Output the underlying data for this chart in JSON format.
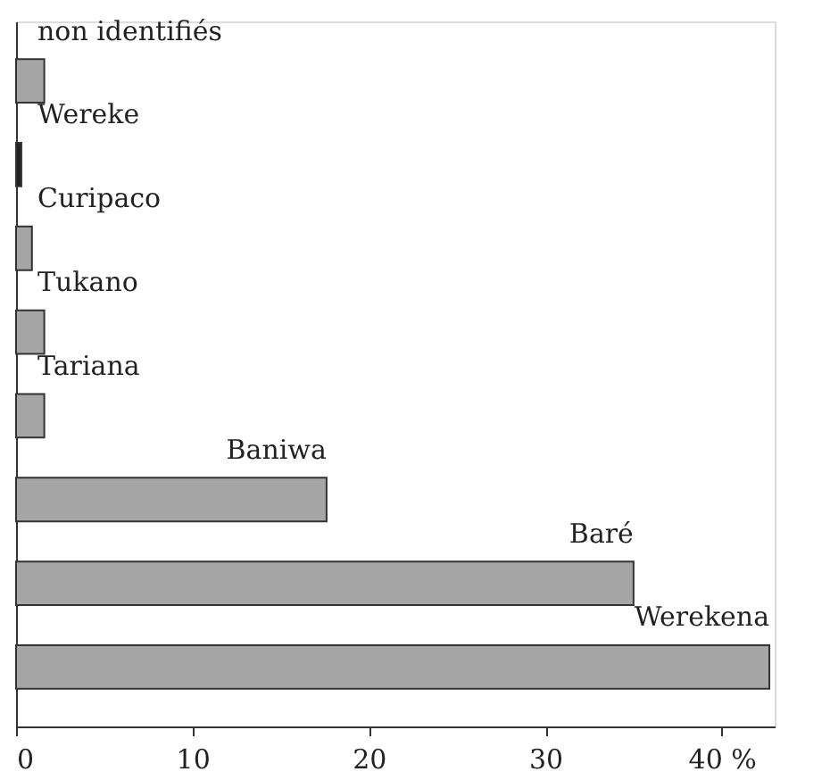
{
  "chart_data": {
    "type": "bar",
    "orientation": "horizontal",
    "categories": [
      "non identifiés",
      "Wereke",
      "Curipaco",
      "Tukano",
      "Tariana",
      "Baniwa",
      "Baré",
      "Werekena"
    ],
    "values": [
      1.6,
      0.3,
      0.9,
      1.6,
      1.6,
      17.6,
      35.0,
      42.7
    ],
    "colors": [
      "#a6a6a6",
      "#222222",
      "#a6a6a6",
      "#a6a6a6",
      "#a6a6a6",
      "#a6a6a6",
      "#a6a6a6",
      "#a6a6a6"
    ],
    "xlim": [
      0,
      43
    ],
    "xticks": [
      0,
      10,
      20,
      30,
      {
        "value": 40,
        "label": "40 %"
      }
    ],
    "grid": false
  }
}
